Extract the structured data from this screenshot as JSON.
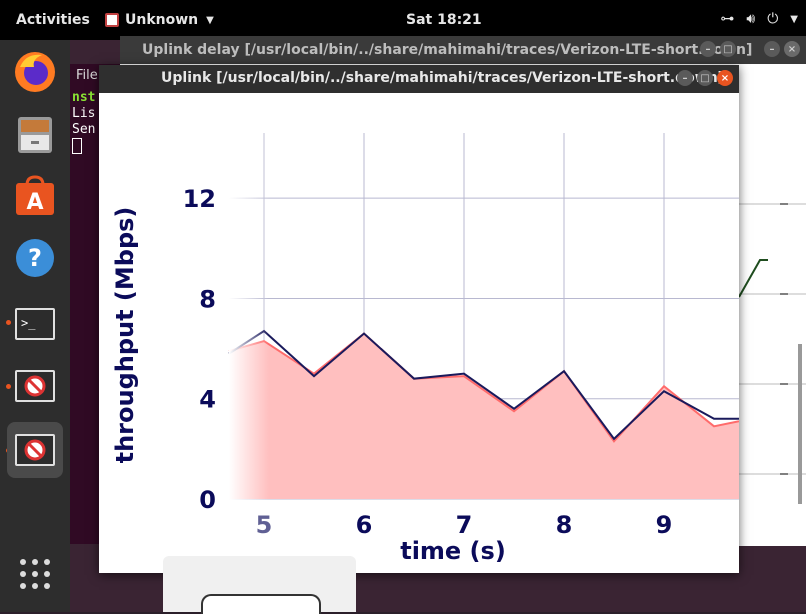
{
  "topbar": {
    "activities": "Activities",
    "app_name": "Unknown",
    "clock": "Sat 18:21"
  },
  "dock": {
    "items": [
      "firefox-icon",
      "files-icon",
      "software-icon",
      "help-icon",
      "terminal-icon",
      "mahimahi-icon",
      "mahimahi-icon"
    ]
  },
  "terminal": {
    "menu_label": "File",
    "lines": [
      "nst",
      "Lis",
      "Sen"
    ]
  },
  "delay_window": {
    "title": "Uplink delay [/usr/local/bin/../share/mahimahi/traces/Verizon-LTE-short.down]"
  },
  "main_window": {
    "title": "Uplink [/usr/local/bin/../share/mahimahi/traces/Verizon-LTE-short.down]"
  },
  "colors": {
    "axis_text": "#0b0b5a",
    "capacity_fill": "#ffbfbf",
    "capacity_line": "#ff6b6b",
    "throughput_line": "#1a1a5c"
  },
  "chart_data": {
    "type": "area",
    "xlabel": "time (s)",
    "ylabel": "throughput (Mbps)",
    "x_ticks": [
      "5",
      "6",
      "7",
      "8",
      "9"
    ],
    "y_ticks": [
      "0",
      "4",
      "8",
      "12"
    ],
    "xlim": [
      4.65,
      9.75
    ],
    "ylim": [
      0,
      14.6
    ],
    "series": [
      {
        "x": [
          4.65,
          5.0,
          5.5,
          6.0,
          6.5,
          7.0,
          7.5,
          8.0,
          8.5,
          9.0,
          9.5,
          9.75
        ],
        "values": [
          5.9,
          6.3,
          5.0,
          6.6,
          4.8,
          4.9,
          3.5,
          5.1,
          2.3,
          4.5,
          2.9,
          3.1
        ]
      },
      {
        "x": [
          4.65,
          5.0,
          5.5,
          6.0,
          6.5,
          7.0,
          7.5,
          8.0,
          8.5,
          9.0,
          9.5,
          9.75
        ],
        "values": [
          5.8,
          6.7,
          4.9,
          6.6,
          4.8,
          5.0,
          3.6,
          5.1,
          2.4,
          4.3,
          3.2,
          3.2
        ]
      }
    ]
  }
}
